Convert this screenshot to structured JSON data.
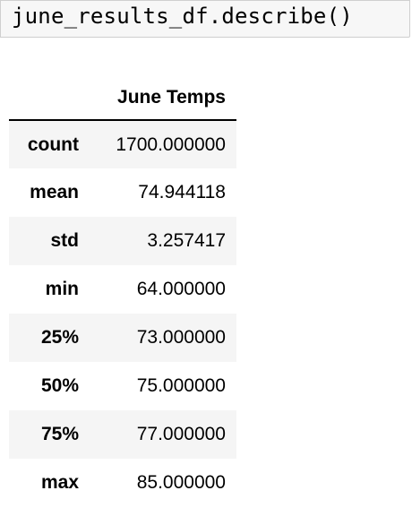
{
  "code_cell": {
    "source": "june_results_df.describe()"
  },
  "output": {
    "columns": [
      "June Temps"
    ],
    "rows": [
      {
        "label": "count",
        "value": "1700.000000"
      },
      {
        "label": "mean",
        "value": "74.944118"
      },
      {
        "label": "std",
        "value": "3.257417"
      },
      {
        "label": "min",
        "value": "64.000000"
      },
      {
        "label": "25%",
        "value": "73.000000"
      },
      {
        "label": "50%",
        "value": "75.000000"
      },
      {
        "label": "75%",
        "value": "77.000000"
      },
      {
        "label": "max",
        "value": "85.000000"
      }
    ]
  },
  "colors": {
    "cell_background": "#f7f7f7",
    "cell_border": "#cfcfcf",
    "striped_row": "#f5f5f5",
    "header_rule": "#000000"
  }
}
